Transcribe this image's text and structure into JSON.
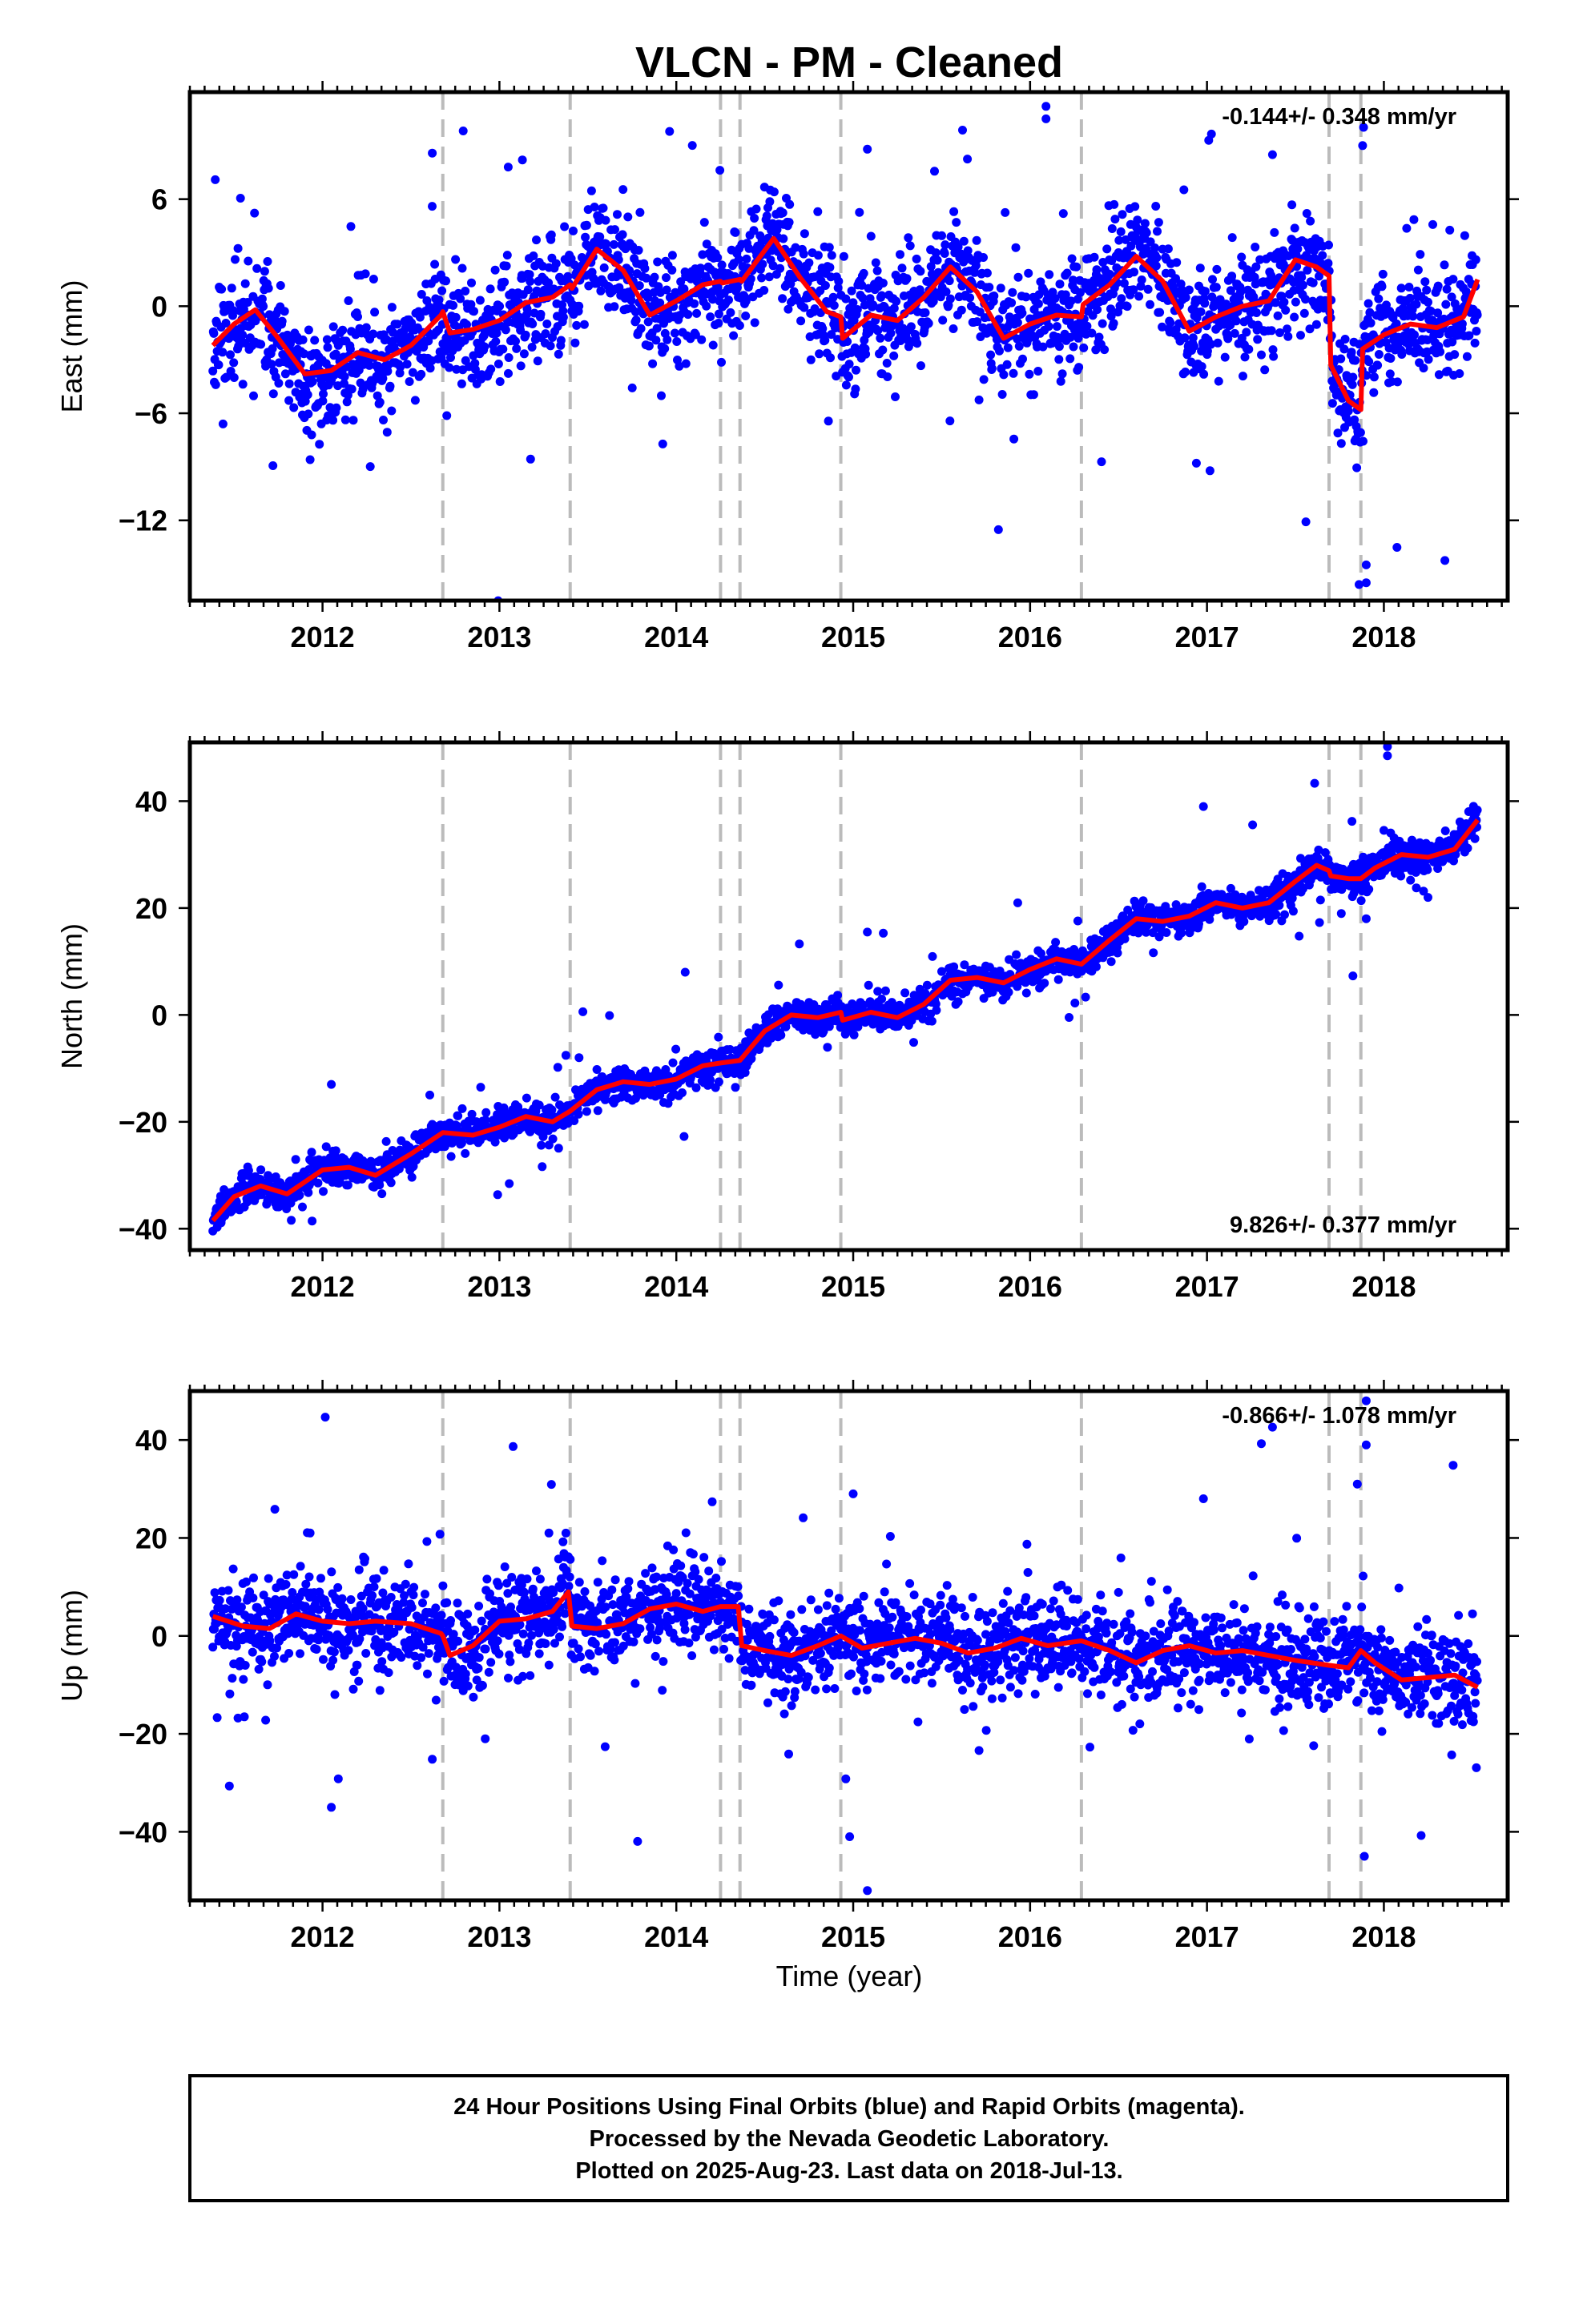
{
  "title": "VLCN  - PM - Cleaned",
  "footer": {
    "line1": "24 Hour Positions Using Final Orbits (blue) and Rapid Orbits (magenta).",
    "line2": "Processed by the Nevada Geodetic Laboratory.",
    "line3": "Plotted on 2025-Aug-23. Last data on 2018-Jul-13."
  },
  "colors": {
    "points": "#0000ff",
    "fit": "#ff0000",
    "breaks": "#bbbbbb",
    "frame": "#000000"
  },
  "chart_data": [
    {
      "type": "scatter",
      "panel": "east",
      "ylabel": "East (mm)",
      "xlabel": "",
      "xlim": [
        2011.25,
        2018.7
      ],
      "ylim": [
        -16.5,
        12
      ],
      "yticks": [
        6,
        0,
        -6,
        -12
      ],
      "ytick_labels": [
        "6",
        "0",
        "−6",
        "−12"
      ],
      "xticks": [
        2012,
        2013,
        2014,
        2015,
        2016,
        2017,
        2018
      ],
      "rate_text": "-0.144+/- 0.348 mm/yr",
      "rate_position": "top-right",
      "breaks": [
        2012.68,
        2013.4,
        2014.25,
        2014.36,
        2014.93,
        2016.29,
        2017.69,
        2017.87
      ],
      "fit": {
        "x": [
          2011.38,
          2011.5,
          2011.62,
          2011.75,
          2011.9,
          2012.05,
          2012.2,
          2012.35,
          2012.5,
          2012.67,
          2012.68,
          2012.72,
          2012.85,
          2013.0,
          2013.15,
          2013.3,
          2013.4,
          2013.41,
          2013.55,
          2013.7,
          2013.85,
          2014.0,
          2014.15,
          2014.25,
          2014.26,
          2014.36,
          2014.37,
          2014.55,
          2014.7,
          2014.85,
          2014.93,
          2014.94,
          2015.1,
          2015.25,
          2015.4,
          2015.55,
          2015.7,
          2015.85,
          2016.0,
          2016.15,
          2016.29,
          2016.3,
          2016.45,
          2016.6,
          2016.75,
          2016.9,
          2017.05,
          2017.2,
          2017.35,
          2017.5,
          2017.62,
          2017.69,
          2017.7,
          2017.8,
          2017.87,
          2017.88,
          2018.0,
          2018.15,
          2018.3,
          2018.45,
          2018.53
        ],
        "y": [
          -2.2,
          -1.0,
          -0.2,
          -1.8,
          -3.8,
          -3.6,
          -2.6,
          -3.0,
          -2.2,
          -0.5,
          -0.3,
          -1.5,
          -1.3,
          -0.8,
          0.2,
          0.5,
          1.2,
          1.0,
          3.2,
          2.0,
          -0.5,
          0.3,
          1.2,
          1.4,
          1.3,
          1.5,
          1.4,
          3.8,
          1.6,
          -0.3,
          -0.6,
          -1.8,
          -0.5,
          -0.8,
          0.5,
          2.2,
          0.8,
          -1.8,
          -1.0,
          -0.5,
          -0.6,
          0.1,
          1.2,
          2.8,
          1.4,
          -1.4,
          -0.6,
          0.0,
          0.3,
          2.6,
          2.2,
          1.7,
          -3.3,
          -5.3,
          -5.8,
          -2.4,
          -1.6,
          -1.0,
          -1.2,
          -0.6,
          1.5
        ]
      },
      "scatter": {
        "noise": 1.5,
        "outlier_rate": 0.04,
        "outlier_scale": 5.5,
        "seed": 11,
        "extremes": [
          [
            2016.09,
            11.2
          ],
          [
            2016.09,
            10.5
          ],
          [
            2017.01,
            9.3
          ],
          [
            2017.88,
            9.0
          ],
          [
            2017.9,
            -15.5
          ],
          [
            2017.86,
            -15.6
          ],
          [
            2017.9,
            -14.5
          ],
          [
            2015.08,
            8.8
          ],
          [
            2013.13,
            8.2
          ],
          [
            2013.05,
            7.8
          ],
          [
            2012.62,
            5.6
          ],
          [
            2016.94,
            -8.8
          ],
          [
            2011.93,
            -8.6
          ]
        ]
      }
    },
    {
      "type": "scatter",
      "panel": "north",
      "ylabel": "North (mm)",
      "xlabel": "",
      "xlim": [
        2011.25,
        2018.7
      ],
      "ylim": [
        -44,
        51
      ],
      "yticks": [
        40,
        20,
        0,
        -20,
        -40
      ],
      "ytick_labels": [
        "40",
        "20",
        "0",
        "−20",
        "−40"
      ],
      "xticks": [
        2012,
        2013,
        2014,
        2015,
        2016,
        2017,
        2018
      ],
      "rate_text": "9.826+/- 0.377 mm/yr",
      "rate_position": "bottom-right",
      "breaks": [
        2012.68,
        2013.4,
        2014.25,
        2014.36,
        2014.93,
        2016.29,
        2017.69,
        2017.87
      ],
      "fit": {
        "x": [
          2011.38,
          2011.5,
          2011.65,
          2011.8,
          2012.0,
          2012.15,
          2012.3,
          2012.5,
          2012.68,
          2012.85,
          2013.0,
          2013.15,
          2013.3,
          2013.4,
          2013.55,
          2013.7,
          2013.85,
          2014.0,
          2014.15,
          2014.25,
          2014.36,
          2014.5,
          2014.65,
          2014.8,
          2014.93,
          2014.94,
          2015.1,
          2015.25,
          2015.4,
          2015.55,
          2015.7,
          2015.85,
          2016.0,
          2016.15,
          2016.29,
          2016.45,
          2016.6,
          2016.75,
          2016.9,
          2017.05,
          2017.2,
          2017.35,
          2017.5,
          2017.62,
          2017.69,
          2017.7,
          2017.8,
          2017.87,
          2017.95,
          2018.1,
          2018.25,
          2018.4,
          2018.53
        ],
        "y": [
          -38.5,
          -34.0,
          -32.0,
          -33.5,
          -29.0,
          -28.5,
          -30.0,
          -26.0,
          -22.0,
          -22.5,
          -21.0,
          -19.0,
          -20.0,
          -18.0,
          -14.0,
          -12.5,
          -13.0,
          -12.0,
          -9.5,
          -9.0,
          -8.5,
          -3.0,
          0.0,
          -0.5,
          0.5,
          -1.0,
          0.5,
          -0.5,
          2.0,
          6.5,
          7.0,
          6.0,
          8.5,
          10.5,
          9.5,
          14.0,
          18.0,
          17.5,
          18.5,
          21.0,
          20.0,
          21.0,
          25.0,
          28.0,
          27.0,
          26.0,
          25.5,
          25.5,
          27.5,
          30.0,
          29.5,
          31.0,
          36.5
        ]
      },
      "scatter": {
        "noise": 1.5,
        "outlier_rate": 0.035,
        "outlier_scale": 4.5,
        "seed": 23,
        "extremes": [
          [
            2018.02,
            50.2
          ],
          [
            2018.02,
            48.5
          ],
          [
            2016.98,
            39.0
          ],
          [
            2014.05,
            8.0
          ],
          [
            2012.05,
            -13.0
          ],
          [
            2015.08,
            15.5
          ],
          [
            2015.17,
            15.3
          ],
          [
            2013.33,
            -9.8
          ],
          [
            2013.45,
            -8.0
          ],
          [
            2017.9,
            18.0
          ]
        ]
      }
    },
    {
      "type": "scatter",
      "panel": "up",
      "ylabel": "Up (mm)",
      "xlabel": "Time (year)",
      "xlim": [
        2011.25,
        2018.7
      ],
      "ylim": [
        -54,
        50
      ],
      "yticks": [
        40,
        20,
        0,
        -20,
        -40
      ],
      "ytick_labels": [
        "40",
        "20",
        "0",
        "−20",
        "−40"
      ],
      "xticks": [
        2012,
        2013,
        2014,
        2015,
        2016,
        2017,
        2018
      ],
      "rate_text": "-0.866+/- 1.078 mm/yr",
      "rate_position": "top-right",
      "breaks": [
        2012.68,
        2013.4,
        2014.25,
        2014.36,
        2014.93,
        2016.29,
        2017.69,
        2017.87
      ],
      "fit": {
        "x": [
          2011.38,
          2011.55,
          2011.7,
          2011.85,
          2012.0,
          2012.15,
          2012.3,
          2012.5,
          2012.67,
          2012.68,
          2012.72,
          2012.85,
          2013.0,
          2013.15,
          2013.3,
          2013.39,
          2013.41,
          2013.55,
          2013.7,
          2013.85,
          2014.0,
          2014.15,
          2014.25,
          2014.35,
          2014.37,
          2014.5,
          2014.65,
          2014.8,
          2014.93,
          2015.05,
          2015.2,
          2015.35,
          2015.5,
          2015.65,
          2015.8,
          2015.95,
          2016.1,
          2016.29,
          2016.45,
          2016.6,
          2016.75,
          2016.9,
          2017.05,
          2017.2,
          2017.35,
          2017.5,
          2017.69,
          2017.8,
          2017.87,
          2017.95,
          2018.1,
          2018.25,
          2018.4,
          2018.53
        ],
        "y": [
          4.0,
          2.0,
          1.5,
          4.5,
          3.0,
          2.5,
          3.0,
          2.5,
          0.5,
          0.0,
          -4.0,
          -2.0,
          3.0,
          3.5,
          5.0,
          9.0,
          2.0,
          1.5,
          2.5,
          5.5,
          6.5,
          5.0,
          6.0,
          6.0,
          -2.0,
          -3.0,
          -4.0,
          -2.0,
          0.0,
          -2.5,
          -1.5,
          -0.5,
          -1.5,
          -3.5,
          -2.5,
          -0.5,
          -2.0,
          -1.0,
          -3.0,
          -5.5,
          -3.0,
          -2.0,
          -3.5,
          -3.0,
          -4.0,
          -5.0,
          -6.0,
          -6.5,
          -3.0,
          -5.5,
          -9.0,
          -8.5,
          -8.0,
          -10.5
        ]
      },
      "scatter": {
        "noise": 4.8,
        "outlier_rate": 0.04,
        "outlier_scale": 3.2,
        "seed": 37,
        "extremes": [
          [
            2017.9,
            48.0
          ],
          [
            2017.9,
            39.0
          ],
          [
            2017.85,
            31.0
          ],
          [
            2016.98,
            28.0
          ],
          [
            2012.05,
            -35.0
          ],
          [
            2015.0,
            29.0
          ],
          [
            2015.08,
            -52.0
          ],
          [
            2014.98,
            -41.0
          ],
          [
            2017.89,
            -45.0
          ],
          [
            2013.28,
            21.0
          ],
          [
            2011.93,
            21.0
          ],
          [
            2012.92,
            -21.0
          ]
        ]
      }
    }
  ]
}
